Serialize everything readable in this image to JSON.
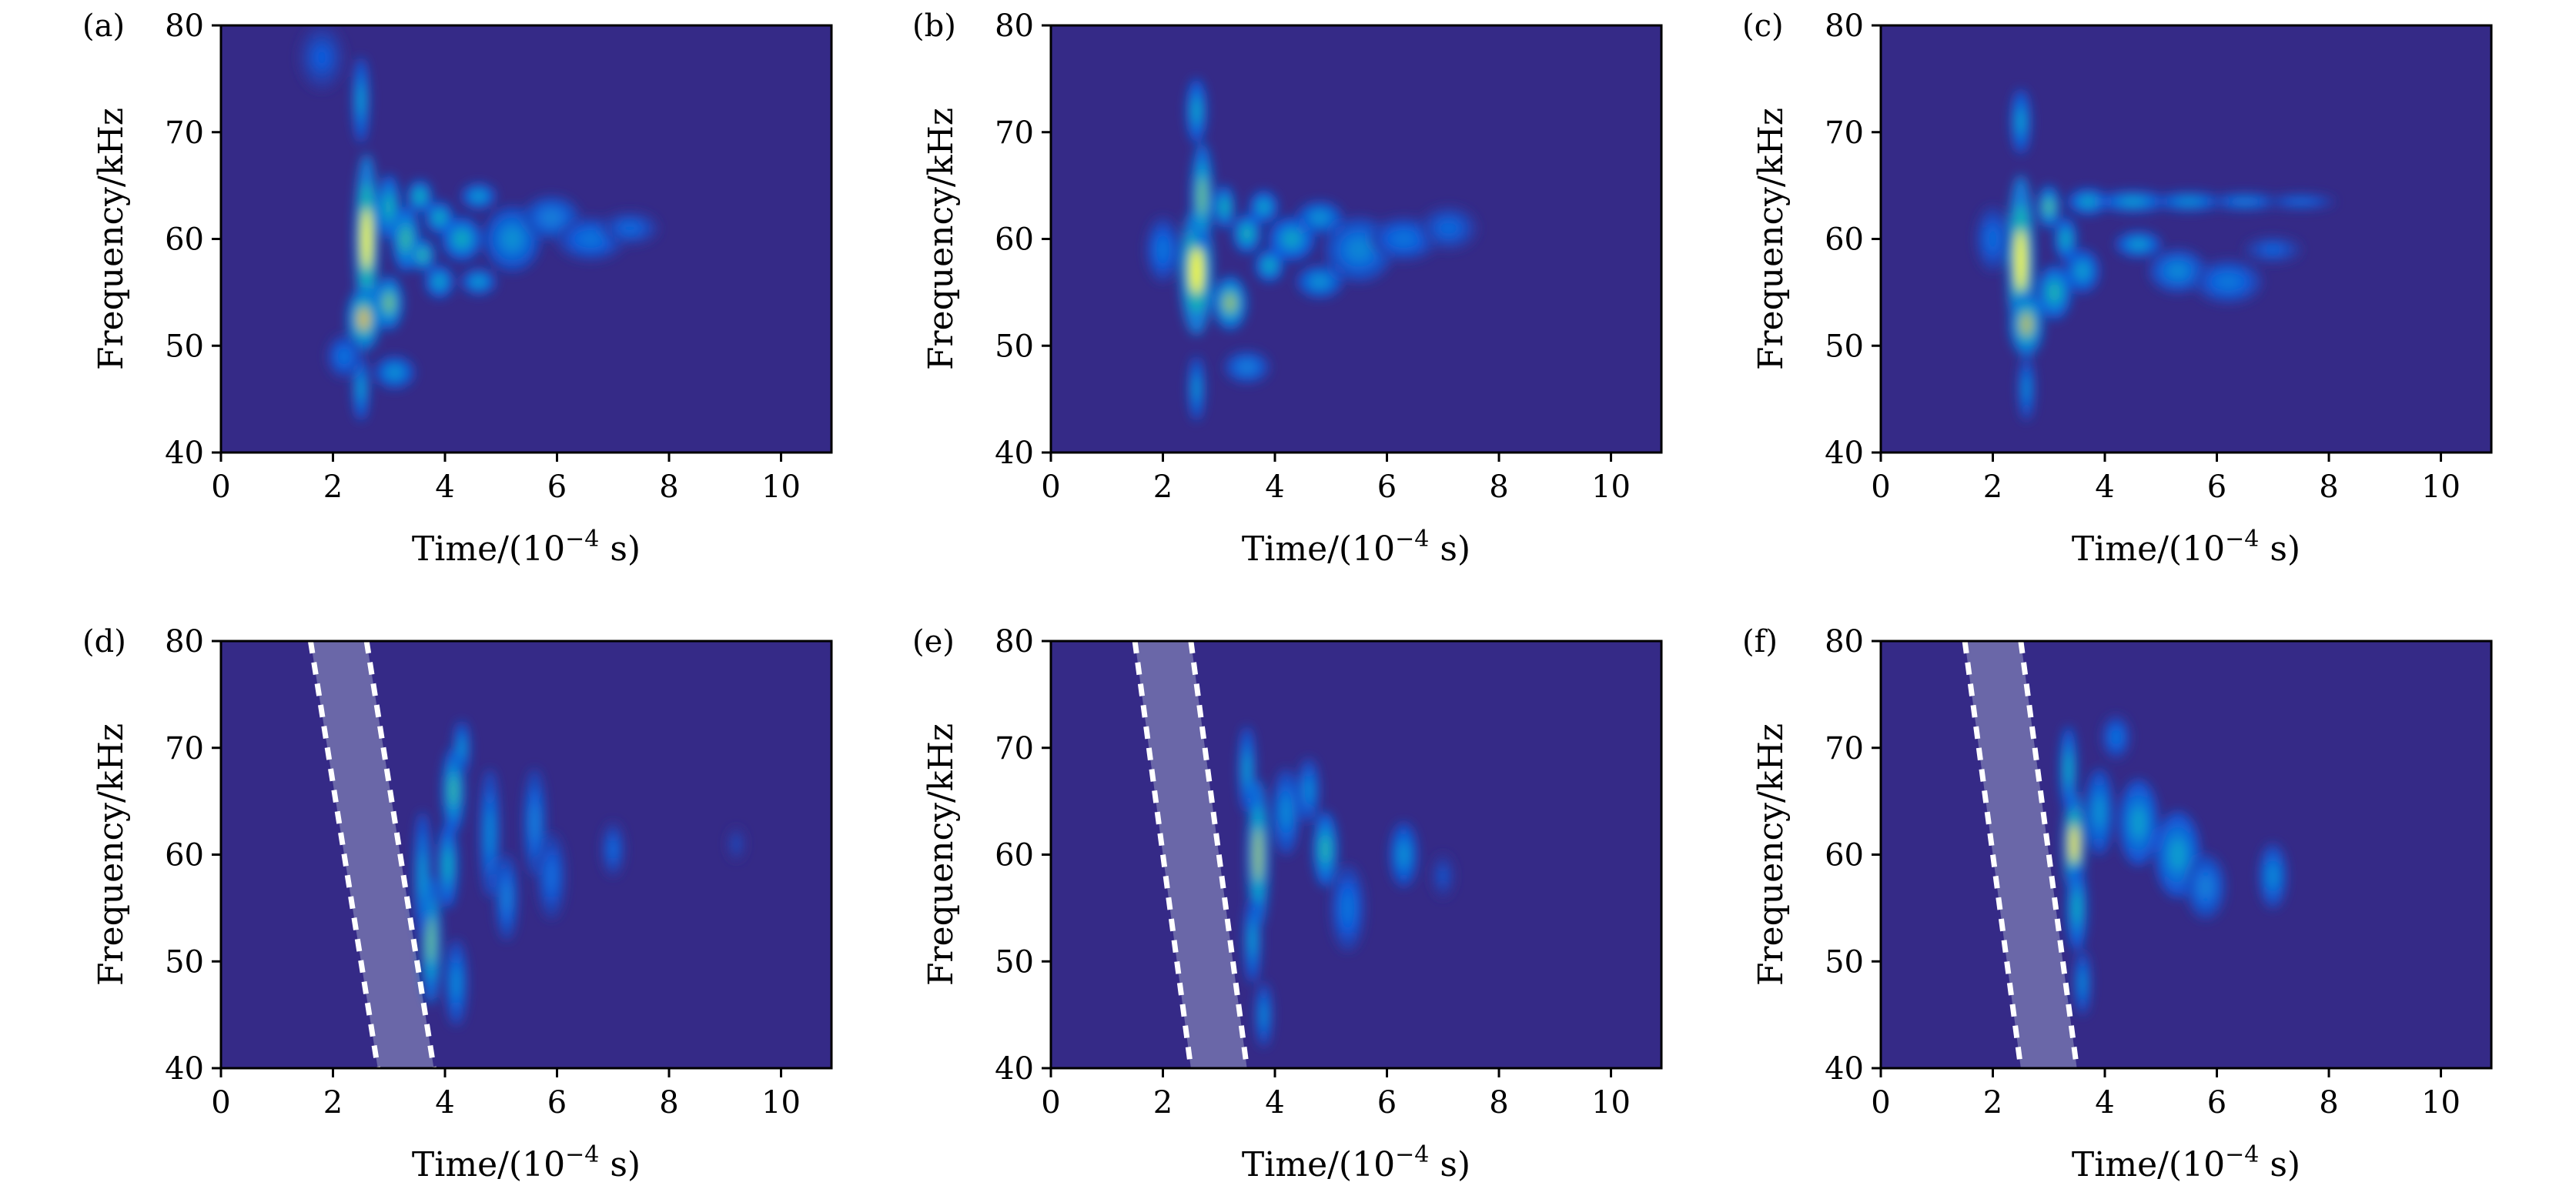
{
  "chart_data": [
    {
      "type": "heatmap",
      "panel_label": "(a)",
      "xlabel": "Time/(10",
      "xlabel_exp": "−4",
      "xlabel_unit": " s)",
      "ylabel": "Frequency/kHz",
      "xlim": [
        0,
        10.9
      ],
      "ylim": [
        40,
        80
      ],
      "xticks": [
        "0",
        "2",
        "4",
        "6",
        "8",
        "10"
      ],
      "yticks": [
        "40",
        "50",
        "60",
        "70",
        "80"
      ],
      "colormap": "parula",
      "background": "#352a87",
      "band": null,
      "blobs": [
        [
          2.6,
          60,
          0.22,
          8,
          1.0
        ],
        [
          2.55,
          52.5,
          0.3,
          3,
          0.9
        ],
        [
          3.0,
          54,
          0.25,
          2.5,
          0.75
        ],
        [
          3.0,
          63,
          0.2,
          3,
          0.6
        ],
        [
          3.3,
          60,
          0.25,
          3,
          0.65
        ],
        [
          3.55,
          64,
          0.22,
          1.5,
          0.6
        ],
        [
          3.6,
          58.5,
          0.22,
          1.5,
          0.65
        ],
        [
          3.9,
          62,
          0.25,
          1.5,
          0.55
        ],
        [
          3.9,
          56,
          0.25,
          1.5,
          0.5
        ],
        [
          4.3,
          60,
          0.35,
          2,
          0.55
        ],
        [
          4.6,
          64,
          0.3,
          1.2,
          0.45
        ],
        [
          4.6,
          56,
          0.3,
          1.2,
          0.45
        ],
        [
          5.2,
          60,
          0.5,
          3,
          0.38
        ],
        [
          5.9,
          62,
          0.5,
          2,
          0.3
        ],
        [
          6.6,
          60,
          0.6,
          2,
          0.25
        ],
        [
          7.3,
          61,
          0.5,
          1.5,
          0.2
        ],
        [
          2.5,
          73,
          0.15,
          4,
          0.45
        ],
        [
          2.5,
          46,
          0.15,
          3,
          0.45
        ],
        [
          3.1,
          47.5,
          0.35,
          1.5,
          0.4
        ],
        [
          1.8,
          77,
          0.4,
          3,
          0.15
        ],
        [
          2.2,
          49,
          0.3,
          2,
          0.25
        ]
      ]
    },
    {
      "type": "heatmap",
      "panel_label": "(b)",
      "xlabel": "Time/(10",
      "xlabel_exp": "−4",
      "xlabel_unit": " s)",
      "ylabel": "Frequency/kHz",
      "xlim": [
        0,
        10.9
      ],
      "ylim": [
        40,
        80
      ],
      "xticks": [
        "0",
        "2",
        "4",
        "6",
        "8",
        "10"
      ],
      "yticks": [
        "40",
        "50",
        "60",
        "70",
        "80"
      ],
      "colormap": "parula",
      "background": "#352a87",
      "band": null,
      "blobs": [
        [
          2.6,
          57,
          0.3,
          6,
          1.0
        ],
        [
          2.7,
          64,
          0.2,
          5,
          0.75
        ],
        [
          2.6,
          72,
          0.18,
          3,
          0.5
        ],
        [
          3.1,
          63,
          0.18,
          2,
          0.6
        ],
        [
          3.2,
          54,
          0.3,
          2.5,
          0.8
        ],
        [
          3.5,
          60.5,
          0.25,
          1.8,
          0.6
        ],
        [
          3.8,
          63,
          0.25,
          1.5,
          0.5
        ],
        [
          3.9,
          57.5,
          0.25,
          1.5,
          0.55
        ],
        [
          4.3,
          60,
          0.4,
          2,
          0.5
        ],
        [
          4.8,
          62,
          0.4,
          1.5,
          0.4
        ],
        [
          4.8,
          56,
          0.4,
          1.5,
          0.4
        ],
        [
          5.5,
          59,
          0.6,
          3,
          0.33
        ],
        [
          6.3,
          60,
          0.6,
          2,
          0.25
        ],
        [
          7.1,
          61,
          0.5,
          2,
          0.2
        ],
        [
          2.0,
          59,
          0.3,
          3,
          0.25
        ],
        [
          2.6,
          46,
          0.15,
          3,
          0.4
        ],
        [
          3.5,
          48,
          0.4,
          1.5,
          0.3
        ]
      ]
    },
    {
      "type": "heatmap",
      "panel_label": "(c)",
      "xlabel": "Time/(10",
      "xlabel_exp": "−4",
      "xlabel_unit": " s)",
      "ylabel": "Frequency/kHz",
      "xlim": [
        0,
        10.9
      ],
      "ylim": [
        40,
        80
      ],
      "xticks": [
        "0",
        "2",
        "4",
        "6",
        "8",
        "10"
      ],
      "yticks": [
        "40",
        "50",
        "60",
        "70",
        "80"
      ],
      "colormap": "parula",
      "background": "#352a87",
      "band": null,
      "blobs": [
        [
          2.5,
          58,
          0.25,
          8,
          1.0
        ],
        [
          2.6,
          52,
          0.3,
          3,
          0.85
        ],
        [
          3.0,
          63,
          0.2,
          2,
          0.7
        ],
        [
          3.3,
          60,
          0.2,
          2,
          0.55
        ],
        [
          3.1,
          55,
          0.3,
          2.5,
          0.6
        ],
        [
          3.6,
          57,
          0.3,
          2,
          0.45
        ],
        [
          3.7,
          63.5,
          0.35,
          1.2,
          0.5
        ],
        [
          4.5,
          63.5,
          0.6,
          1.0,
          0.45
        ],
        [
          5.5,
          63.5,
          0.6,
          0.9,
          0.38
        ],
        [
          6.5,
          63.5,
          0.6,
          0.8,
          0.3
        ],
        [
          7.5,
          63.5,
          0.6,
          0.7,
          0.22
        ],
        [
          4.6,
          59.5,
          0.4,
          1.2,
          0.45
        ],
        [
          5.3,
          57,
          0.5,
          2,
          0.35
        ],
        [
          6.2,
          56,
          0.6,
          2,
          0.27
        ],
        [
          2.5,
          71,
          0.18,
          3,
          0.45
        ],
        [
          2.6,
          46,
          0.15,
          3,
          0.35
        ],
        [
          2.0,
          60,
          0.3,
          3,
          0.22
        ],
        [
          7.0,
          59,
          0.5,
          1.2,
          0.18
        ]
      ]
    },
    {
      "type": "heatmap",
      "panel_label": "(d)",
      "xlabel": "Time/(10",
      "xlabel_exp": "−4",
      "xlabel_unit": " s)",
      "ylabel": "Frequency/kHz",
      "xlim": [
        0,
        10.9
      ],
      "ylim": [
        40,
        80
      ],
      "xticks": [
        "0",
        "2",
        "4",
        "6",
        "8",
        "10"
      ],
      "yticks": [
        "40",
        "50",
        "60",
        "70",
        "80"
      ],
      "colormap": "parula",
      "background": "#352a87",
      "band": {
        "left": [
          [
            1.6,
            80
          ],
          [
            2.8,
            40
          ]
        ],
        "right": [
          [
            2.6,
            80
          ],
          [
            3.8,
            40
          ]
        ],
        "fill": "#6a67a8"
      },
      "blobs": [
        [
          3.75,
          52,
          0.18,
          6,
          0.75
        ],
        [
          3.6,
          58,
          0.15,
          6,
          0.45
        ],
        [
          4.15,
          66,
          0.2,
          4,
          0.65
        ],
        [
          4.05,
          59,
          0.18,
          4,
          0.55
        ],
        [
          4.3,
          70,
          0.15,
          2.5,
          0.4
        ],
        [
          4.2,
          48,
          0.2,
          4,
          0.35
        ],
        [
          4.8,
          62,
          0.18,
          6,
          0.35
        ],
        [
          5.1,
          56,
          0.2,
          4,
          0.3
        ],
        [
          5.6,
          63,
          0.2,
          5,
          0.3
        ],
        [
          5.9,
          58,
          0.25,
          4,
          0.22
        ],
        [
          7.0,
          60.5,
          0.2,
          2.5,
          0.2
        ],
        [
          9.2,
          61,
          0.15,
          1.5,
          0.1
        ]
      ]
    },
    {
      "type": "heatmap",
      "panel_label": "(e)",
      "xlabel": "Time/(10",
      "xlabel_exp": "−4",
      "xlabel_unit": " s)",
      "ylabel": "Frequency/kHz",
      "xlim": [
        0,
        10.9
      ],
      "ylim": [
        40,
        80
      ],
      "xticks": [
        "0",
        "2",
        "4",
        "6",
        "8",
        "10"
      ],
      "yticks": [
        "40",
        "50",
        "60",
        "70",
        "80"
      ],
      "colormap": "parula",
      "background": "#352a87",
      "band": {
        "left": [
          [
            1.5,
            80
          ],
          [
            2.5,
            40
          ]
        ],
        "right": [
          [
            2.5,
            80
          ],
          [
            3.5,
            40
          ]
        ],
        "fill": "#6a67a8"
      },
      "blobs": [
        [
          3.7,
          60,
          0.2,
          7,
          0.82
        ],
        [
          3.6,
          52,
          0.15,
          4,
          0.45
        ],
        [
          3.5,
          68,
          0.15,
          4,
          0.45
        ],
        [
          3.8,
          45,
          0.15,
          3,
          0.35
        ],
        [
          4.2,
          64,
          0.25,
          4,
          0.35
        ],
        [
          4.9,
          60.5,
          0.22,
          3.5,
          0.62
        ],
        [
          4.6,
          66,
          0.2,
          3,
          0.35
        ],
        [
          5.3,
          55,
          0.3,
          4,
          0.25
        ],
        [
          6.3,
          60,
          0.25,
          3,
          0.38
        ],
        [
          7.0,
          58,
          0.2,
          2,
          0.12
        ]
      ]
    },
    {
      "type": "heatmap",
      "panel_label": "(f)",
      "xlabel": "Time/(10",
      "xlabel_exp": "−4",
      "xlabel_unit": " s)",
      "ylabel": "Frequency/kHz",
      "xlim": [
        0,
        10.9
      ],
      "ylim": [
        40,
        80
      ],
      "xticks": [
        "0",
        "2",
        "4",
        "6",
        "8",
        "10"
      ],
      "yticks": [
        "40",
        "50",
        "60",
        "70",
        "80"
      ],
      "colormap": "parula",
      "background": "#352a87",
      "band": {
        "left": [
          [
            1.5,
            80
          ],
          [
            2.5,
            40
          ]
        ],
        "right": [
          [
            2.5,
            80
          ],
          [
            3.5,
            40
          ]
        ],
        "fill": "#6a67a8"
      },
      "blobs": [
        [
          3.45,
          61,
          0.2,
          5,
          0.98
        ],
        [
          3.5,
          55,
          0.18,
          4,
          0.55
        ],
        [
          3.35,
          68,
          0.15,
          4,
          0.55
        ],
        [
          3.6,
          48,
          0.15,
          3,
          0.35
        ],
        [
          3.9,
          64,
          0.25,
          4,
          0.4
        ],
        [
          4.6,
          63,
          0.35,
          4,
          0.45
        ],
        [
          5.3,
          60,
          0.4,
          4,
          0.45
        ],
        [
          5.8,
          57,
          0.35,
          3,
          0.3
        ],
        [
          7.0,
          58,
          0.25,
          3,
          0.35
        ],
        [
          4.2,
          71,
          0.25,
          2,
          0.25
        ]
      ]
    }
  ]
}
